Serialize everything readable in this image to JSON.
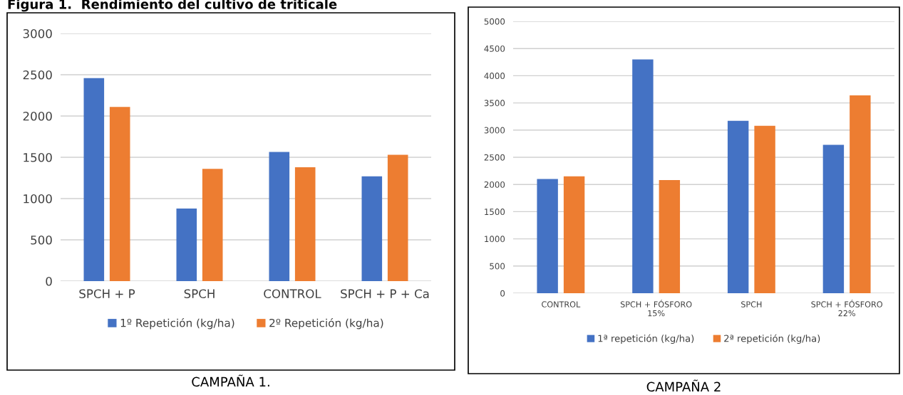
{
  "chart_data": [
    {
      "type": "bar",
      "title": "Figura 1.  Rendimiento del cultivo de triticale",
      "categories": [
        "SPCH + P",
        "SPCH",
        "CONTROL",
        "SPCH + P + Ca"
      ],
      "series": [
        {
          "name": "1º Repetición (kg/ha)",
          "color": "#4472c4",
          "values": [
            2460,
            880,
            1565,
            1270
          ]
        },
        {
          "name": "2º Repetición (kg/ha)",
          "color": "#ed7d31",
          "values": [
            2110,
            1360,
            1380,
            1530
          ]
        }
      ],
      "ylim": [
        0,
        3000
      ],
      "yticks": [
        0,
        500,
        1000,
        1500,
        2000,
        2500,
        3000
      ],
      "grid": "y",
      "legend": "bottom",
      "annotations": [
        "CAMPAÑA 1."
      ]
    },
    {
      "type": "bar",
      "categories": [
        "CONTROL",
        "SPCH + FÓSFORO\n15%",
        "SPCH",
        "SPCH + FÓSFORO\n22%"
      ],
      "series": [
        {
          "name": "1ª repetición (kg/ha)",
          "color": "#4472c4",
          "values": [
            2100,
            4300,
            3170,
            2730
          ]
        },
        {
          "name": "2ª repetición (kg/ha)",
          "color": "#ed7d31",
          "values": [
            2150,
            2080,
            3080,
            3640
          ]
        }
      ],
      "ylim": [
        0,
        5000
      ],
      "yticks": [
        0,
        500,
        1000,
        1500,
        2000,
        2500,
        3000,
        3500,
        4000,
        4500,
        5000
      ],
      "grid": "y",
      "legend": "bottom",
      "annotations": [
        "CAMPAÑA 2"
      ]
    }
  ]
}
